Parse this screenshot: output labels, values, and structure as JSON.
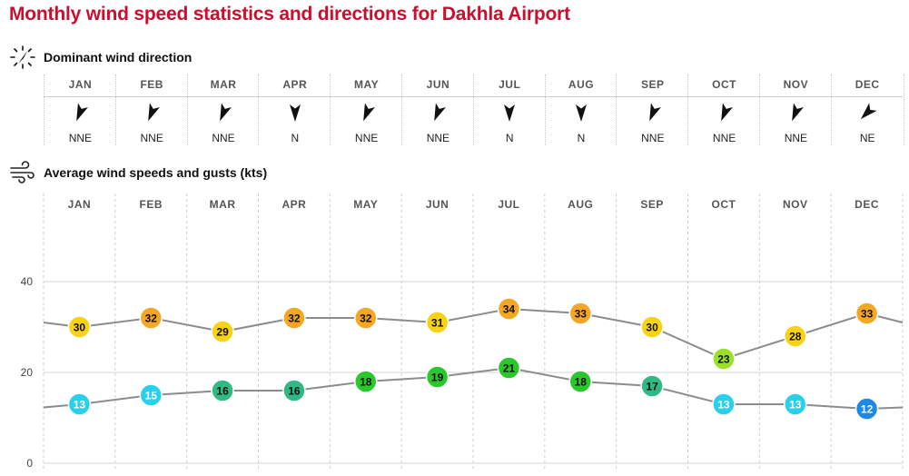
{
  "page": {
    "title": "Monthly wind speed statistics and directions for Dakhla Airport"
  },
  "direction_section": {
    "icon": "compass-icon",
    "label": "Dominant wind direction",
    "months": [
      {
        "month": "JAN",
        "direction": "NNE",
        "degrees": 22.5
      },
      {
        "month": "FEB",
        "direction": "NNE",
        "degrees": 22.5
      },
      {
        "month": "MAR",
        "direction": "NNE",
        "degrees": 22.5
      },
      {
        "month": "APR",
        "direction": "N",
        "degrees": 0
      },
      {
        "month": "MAY",
        "direction": "NNE",
        "degrees": 22.5
      },
      {
        "month": "JUN",
        "direction": "NNE",
        "degrees": 22.5
      },
      {
        "month": "JUL",
        "direction": "N",
        "degrees": 0
      },
      {
        "month": "AUG",
        "direction": "N",
        "degrees": 0
      },
      {
        "month": "SEP",
        "direction": "NNE",
        "degrees": 22.5
      },
      {
        "month": "OCT",
        "direction": "NNE",
        "degrees": 22.5
      },
      {
        "month": "NOV",
        "direction": "NNE",
        "degrees": 22.5
      },
      {
        "month": "DEC",
        "direction": "NE",
        "degrees": 45
      }
    ]
  },
  "speed_section": {
    "icon": "wind-icon",
    "label": "Average wind speeds and gusts (kts)"
  },
  "chart_data": {
    "type": "line",
    "title": "Average wind speeds and gusts (kts)",
    "categories": [
      "JAN",
      "FEB",
      "MAR",
      "APR",
      "MAY",
      "JUN",
      "JUL",
      "AUG",
      "SEP",
      "OCT",
      "NOV",
      "DEC"
    ],
    "ylim": [
      0,
      50
    ],
    "yticks": [
      0,
      20,
      40
    ],
    "grid": true,
    "series": [
      {
        "values": [
          30,
          32,
          29,
          32,
          32,
          31,
          34,
          33,
          30,
          23,
          28,
          33
        ],
        "wrap": {
          "before": 31,
          "after": 31
        }
      },
      {
        "values": [
          13,
          15,
          16,
          16,
          18,
          19,
          21,
          18,
          17,
          13,
          13,
          12
        ],
        "wrap": {
          "before": 12.3,
          "after": 12.3
        }
      }
    ],
    "color_scale": [
      {
        "min": 0,
        "max": 12,
        "color": "#1e88e5"
      },
      {
        "min": 13,
        "max": 15,
        "color": "#29d0ea"
      },
      {
        "min": 16,
        "max": 17,
        "color": "#2fba85"
      },
      {
        "min": 18,
        "max": 22,
        "color": "#2bc82b"
      },
      {
        "min": 23,
        "max": 27,
        "color": "#9be12a"
      },
      {
        "min": 28,
        "max": 31,
        "color": "#f7d215"
      },
      {
        "min": 32,
        "max": 40,
        "color": "#f5a623"
      }
    ],
    "line_color": "#8c8c8c"
  }
}
